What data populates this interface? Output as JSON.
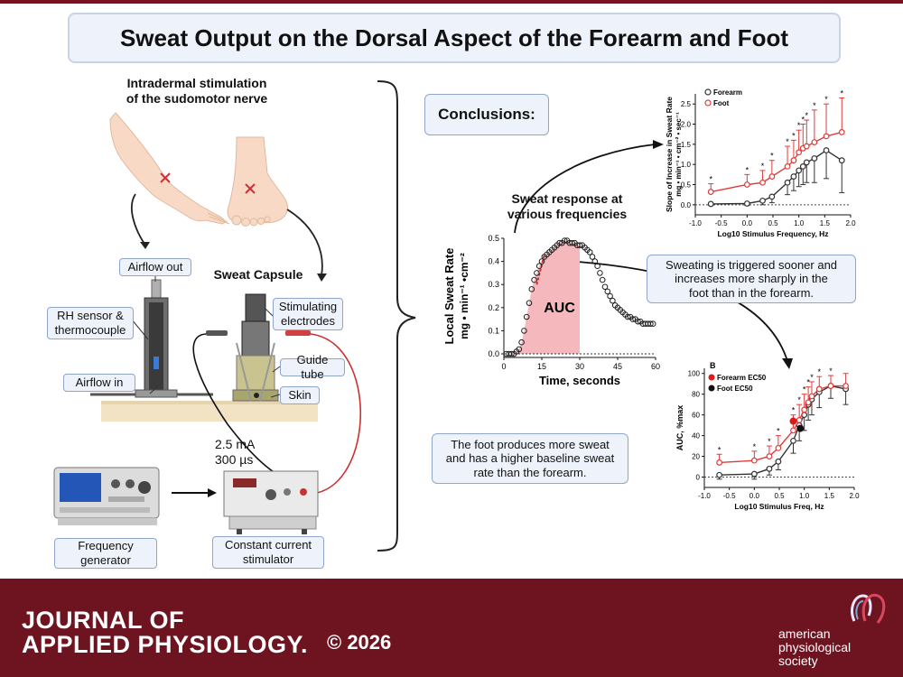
{
  "title": "Sweat Output on the Dorsal Aspect of the Forearm and Foot",
  "left_panel": {
    "heading_line1": "Intradermal stimulation",
    "heading_line2": "of the sudomotor nerve",
    "airflow_out": "Airflow out",
    "sweat_capsule": "Sweat Capsule",
    "rh_sensor_line1": "RH sensor &",
    "rh_sensor_line2": "thermocouple",
    "stimulating_line1": "Stimulating",
    "stimulating_line2": "electrodes",
    "airflow_in": "Airflow in",
    "guide_tube": "Guide tube",
    "skin": "Skin",
    "stim_current": "2.5 mA",
    "stim_duration": "300 µs",
    "freq_gen_line1": "Frequency",
    "freq_gen_line2": "generator",
    "stimulator_line1": "Constant current",
    "stimulator_line2": "stimulator"
  },
  "right_panel": {
    "conclusions_label": "Conclusions:",
    "sweat_response_line1": "Sweat response at",
    "sweat_response_line2": "various frequencies",
    "conclusion_1_line1": "Sweating is triggered sooner and",
    "conclusion_1_line2": "increases more sharply in the",
    "conclusion_1_line3": "foot than in the forearm.",
    "conclusion_2_line1": "The foot produces more sweat",
    "conclusion_2_line2": "and has a higher baseline sweat",
    "conclusion_2_line3": "rate than the forearm."
  },
  "chart_data": [
    {
      "type": "scatter",
      "ylabel_line1": "Local Sweat Rate",
      "ylabel_line2": "mg • min⁻¹ •cm⁻²",
      "xlabel": "Time, seconds",
      "xlim": [
        0,
        60
      ],
      "ylim": [
        0,
        0.5
      ],
      "x_ticks": [
        "0",
        "15",
        "30",
        "45",
        "60"
      ],
      "y_ticks": [
        "0.0",
        "0.1",
        "0.2",
        "0.3",
        "0.4",
        "0.5"
      ],
      "annotation": "AUC",
      "auc_range": [
        0,
        30
      ],
      "x": [
        1,
        2,
        3,
        4,
        5,
        6,
        7,
        8,
        9,
        10,
        11,
        12,
        13,
        14,
        15,
        16,
        17,
        18,
        19,
        20,
        21,
        22,
        23,
        24,
        25,
        26,
        27,
        28,
        29,
        30,
        31,
        32,
        33,
        34,
        35,
        36,
        37,
        38,
        39,
        40,
        41,
        42,
        43,
        44,
        45,
        46,
        47,
        48,
        49,
        50,
        51,
        52,
        53,
        54,
        55,
        56,
        57,
        58,
        59
      ],
      "y": [
        0.0,
        0.0,
        0.0,
        0.0,
        0.01,
        0.02,
        0.05,
        0.1,
        0.16,
        0.22,
        0.28,
        0.32,
        0.35,
        0.38,
        0.4,
        0.42,
        0.43,
        0.44,
        0.45,
        0.46,
        0.47,
        0.48,
        0.48,
        0.49,
        0.49,
        0.48,
        0.48,
        0.48,
        0.47,
        0.47,
        0.47,
        0.46,
        0.45,
        0.44,
        0.42,
        0.4,
        0.38,
        0.35,
        0.32,
        0.29,
        0.27,
        0.25,
        0.23,
        0.21,
        0.2,
        0.19,
        0.18,
        0.17,
        0.16,
        0.16,
        0.15,
        0.15,
        0.14,
        0.14,
        0.13,
        0.13,
        0.13,
        0.13,
        0.13
      ]
    },
    {
      "type": "line",
      "ylabel_line1": "Slope of Increase in Sweat Rate",
      "ylabel_line2": "mg • min⁻¹ • cm⁻² • sec⁻¹",
      "xlabel": "Log10 Stimulus Frequency, Hz",
      "xlim": [
        -1.0,
        2.0
      ],
      "ylim": [
        -0.25,
        2.75
      ],
      "x_ticks": [
        "-1.0",
        "-0.5",
        "0.0",
        "0.5",
        "1.0",
        "1.5",
        "2.0"
      ],
      "y_ticks": [
        "0.0",
        "0.5",
        "1.0",
        "1.5",
        "2.0",
        "2.5"
      ],
      "series": [
        {
          "name": "Forearm",
          "color": "#333333",
          "x": [
            -0.7,
            0.0,
            0.3,
            0.48,
            0.78,
            0.9,
            1.0,
            1.08,
            1.15,
            1.3,
            1.53,
            1.83
          ],
          "y": [
            0.02,
            0.03,
            0.1,
            0.2,
            0.55,
            0.7,
            0.85,
            0.95,
            1.05,
            1.15,
            1.35,
            1.1
          ],
          "err": [
            0.03,
            0.05,
            0.1,
            0.15,
            0.3,
            0.35,
            0.4,
            0.45,
            0.5,
            0.6,
            0.7,
            0.8
          ]
        },
        {
          "name": "Foot",
          "color": "#e03a3a",
          "x": [
            -0.7,
            0.0,
            0.3,
            0.48,
            0.78,
            0.9,
            1.0,
            1.08,
            1.15,
            1.3,
            1.53,
            1.83
          ],
          "y": [
            0.32,
            0.5,
            0.55,
            0.7,
            0.95,
            1.1,
            1.3,
            1.4,
            1.45,
            1.55,
            1.7,
            1.8
          ],
          "err": [
            0.2,
            0.25,
            0.3,
            0.4,
            0.5,
            0.5,
            0.55,
            0.6,
            0.65,
            0.8,
            0.8,
            0.85
          ]
        }
      ],
      "significance_markers": "*"
    },
    {
      "type": "line",
      "panel_label": "B",
      "ylabel": "AUC, %max",
      "xlabel": "Log10 Stimulus Freq, Hz",
      "xlim": [
        -1.0,
        2.0
      ],
      "ylim": [
        -10,
        105
      ],
      "x_ticks": [
        "-1.0",
        "-0.5",
        "0.0",
        "0.5",
        "1.0",
        "1.5",
        "2.0"
      ],
      "y_ticks": [
        "0",
        "20",
        "40",
        "60",
        "80",
        "100"
      ],
      "legend": [
        "Forearm EC50",
        "Foot EC50"
      ],
      "series": [
        {
          "name": "Forearm",
          "color": "#333333",
          "x": [
            -0.7,
            0.0,
            0.3,
            0.48,
            0.78,
            0.9,
            1.0,
            1.08,
            1.15,
            1.3,
            1.53,
            1.83
          ],
          "y": [
            2,
            3,
            8,
            15,
            35,
            50,
            60,
            70,
            75,
            82,
            88,
            85
          ],
          "err": [
            4,
            5,
            6,
            8,
            12,
            15,
            15,
            15,
            15,
            15,
            12,
            15
          ]
        },
        {
          "name": "Foot",
          "color": "#e03a3a",
          "x": [
            -0.7,
            0.0,
            0.3,
            0.48,
            0.78,
            0.9,
            1.0,
            1.08,
            1.15,
            1.3,
            1.53,
            1.83
          ],
          "y": [
            14,
            16,
            20,
            28,
            45,
            55,
            65,
            72,
            78,
            85,
            88,
            88
          ],
          "err": [
            8,
            9,
            10,
            12,
            15,
            15,
            15,
            15,
            14,
            12,
            10,
            12
          ]
        }
      ],
      "ec50_forearm": {
        "x": 0.92,
        "y": 47
      },
      "ec50_foot": {
        "x": 0.78,
        "y": 54
      },
      "significance_markers": "*"
    }
  ],
  "footer": {
    "journal_line1": "JOURNAL OF",
    "journal_line2": "APPLIED PHYSIOLOGY.",
    "copyright": "© 2026",
    "society_line1": "american",
    "society_line2": "physiological",
    "society_line3": "society"
  },
  "colors": {
    "brand": "#6e1421",
    "label_bg": "#eef3fb",
    "label_border": "#8fa6c9",
    "foot_red": "#e03a3a",
    "auc_fill": "#f5b8bd"
  }
}
